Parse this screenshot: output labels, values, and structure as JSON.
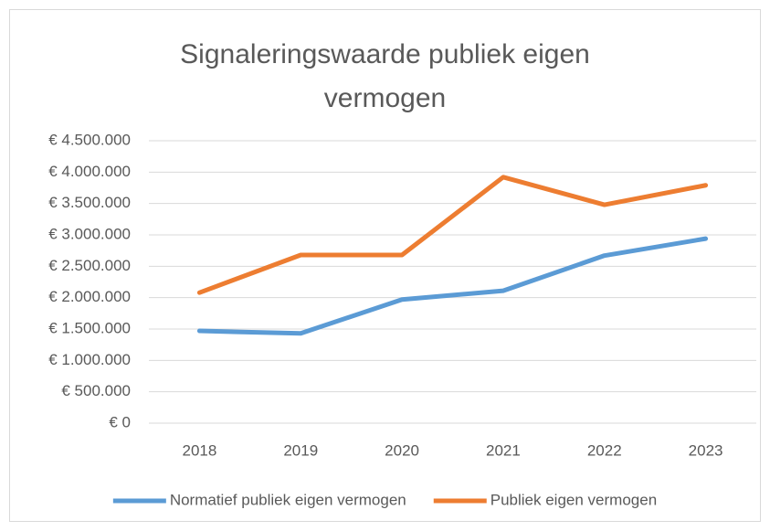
{
  "chart_data": {
    "type": "line",
    "title": "Signaleringswaarde publiek eigen vermogen",
    "categories": [
      "2018",
      "2019",
      "2020",
      "2021",
      "2022",
      "2023"
    ],
    "series": [
      {
        "name": "Normatief publiek eigen vermogen",
        "color": "#5b9bd5",
        "values": [
          1470000,
          1430000,
          1970000,
          2110000,
          2670000,
          2940000
        ]
      },
      {
        "name": "Publiek eigen vermogen",
        "color": "#ed7d31",
        "values": [
          2080000,
          2680000,
          2680000,
          3920000,
          3480000,
          3790000
        ]
      }
    ],
    "ylim": [
      0,
      4500000
    ],
    "yticks": [
      {
        "value": 0,
        "label": "€ 0"
      },
      {
        "value": 500000,
        "label": "€ 500.000"
      },
      {
        "value": 1000000,
        "label": "€ 1.000.000"
      },
      {
        "value": 1500000,
        "label": "€ 1.500.000"
      },
      {
        "value": 2000000,
        "label": "€ 2.000.000"
      },
      {
        "value": 2500000,
        "label": "€ 2.500.000"
      },
      {
        "value": 3000000,
        "label": "€ 3.000.000"
      },
      {
        "value": 3500000,
        "label": "€ 3.500.000"
      },
      {
        "value": 4000000,
        "label": "€ 4.000.000"
      },
      {
        "value": 4500000,
        "label": "€ 4.500.000"
      }
    ],
    "grid": true,
    "legend": "bottom"
  }
}
